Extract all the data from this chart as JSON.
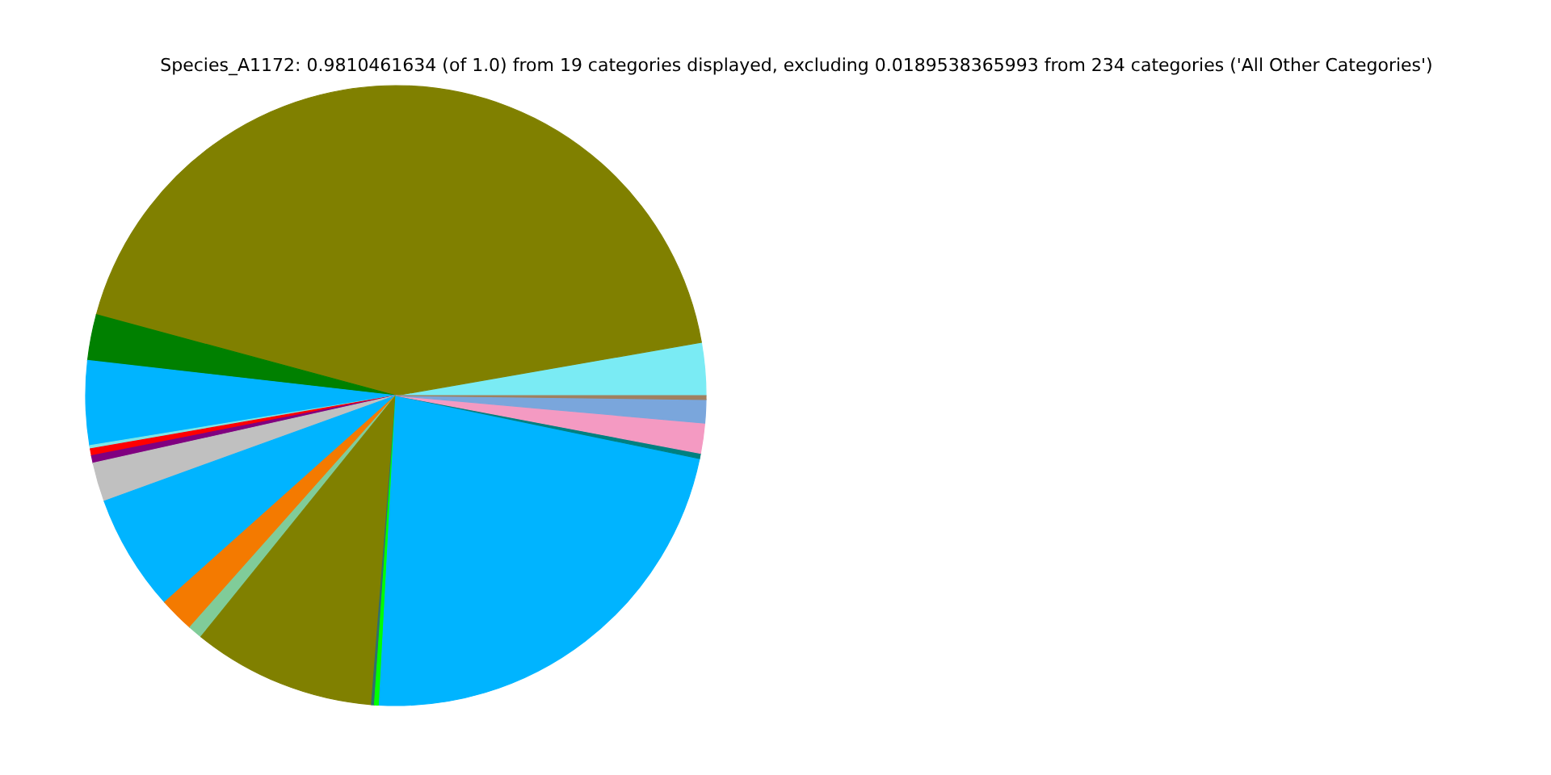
{
  "chart_data": {
    "type": "pie",
    "title": "Species_A1172: 0.9810461634 (of 1.0) from 19 categories displayed, excluding 0.0189538365993 from 234 categories ('All Other Categories')",
    "categories": [
      null,
      null,
      null,
      null,
      null,
      null,
      null,
      null,
      null,
      null,
      null,
      null,
      null,
      null,
      null,
      null,
      null,
      null,
      null
    ],
    "values": [
      2.75,
      43.05,
      2.39,
      4.39,
      0.17,
      0.36,
      0.39,
      2.03,
      6.08,
      1.83,
      0.75,
      9.56,
      0.15,
      0.25,
      22.59,
      0.28,
      1.56,
      1.22,
      0.2
    ],
    "colors": [
      "#7aebf4",
      "#808000",
      "#008000",
      "#00b4ff",
      "#7fe6e6",
      "#ff0000",
      "#800080",
      "#c0c0c0",
      "#00b4ff",
      "#f47a00",
      "#80cc99",
      "#808000",
      "#2f6f6f",
      "#00ff00",
      "#00b4ff",
      "#008080",
      "#f49ac2",
      "#7aa6dc",
      "#a08060"
    ],
    "legend": false
  }
}
